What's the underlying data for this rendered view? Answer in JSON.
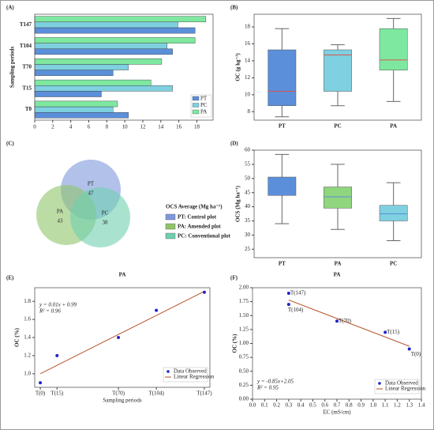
{
  "chart_data": [
    {
      "panel": "(A)",
      "type": "bar",
      "orientation": "horizontal",
      "ylabel": "Sampling periods",
      "categories": [
        "T0",
        "T15",
        "T70",
        "T104",
        "T147"
      ],
      "series": [
        {
          "name": "PT",
          "color": "#5b8fd9",
          "values": [
            10.4,
            7.4,
            8.7,
            15.3,
            17.8
          ]
        },
        {
          "name": "PC",
          "color": "#7fd0e0",
          "values": [
            8.7,
            15.3,
            10.4,
            14.7,
            15.9
          ]
        },
        {
          "name": "PA",
          "color": "#7ee8a0",
          "values": [
            9.2,
            12.9,
            14.1,
            17.8,
            19.0
          ]
        }
      ],
      "xlim": [
        0,
        19.8
      ],
      "xticks": [
        0,
        2,
        4,
        6,
        8,
        10,
        12,
        14,
        16,
        18
      ],
      "legend": "lower right"
    },
    {
      "panel": "(B)",
      "type": "box",
      "ylabel": "OC (g kg⁻¹)",
      "categories": [
        "PT",
        "PC",
        "PA"
      ],
      "colors": [
        "#5b8fd9",
        "#7fd0e0",
        "#7ee8a0"
      ],
      "median_color": "#d9534f",
      "boxes": [
        {
          "min": 7.4,
          "q1": 8.7,
          "median": 10.4,
          "q3": 15.3,
          "max": 17.8
        },
        {
          "min": 8.7,
          "q1": 10.4,
          "median": 14.7,
          "q3": 15.3,
          "max": 15.9
        },
        {
          "min": 9.2,
          "q1": 12.9,
          "median": 14.1,
          "q3": 17.8,
          "max": 19.0
        }
      ],
      "ylim": [
        7,
        19.5
      ],
      "yticks": [
        8,
        10,
        12,
        14,
        16,
        18
      ]
    },
    {
      "panel": "(C)",
      "type": "venn",
      "sets": [
        {
          "name": "PT",
          "value": 47,
          "color": "#7f98dc"
        },
        {
          "name": "PA",
          "value": 43,
          "color": "#8fc46a"
        },
        {
          "name": "PC",
          "value": 38,
          "color": "#6fd0b0"
        }
      ],
      "legend_title": "OCS Average (Mg ha⁻¹)",
      "legend": [
        "PT: Control plot",
        "PA: Amended plot",
        "PC: Conventional plot"
      ]
    },
    {
      "panel": "(D)",
      "type": "box",
      "ylabel": "OCS (Mg ha⁻¹)",
      "categories": [
        "PT",
        "PA",
        "PC"
      ],
      "colors": [
        "#5b8fd9",
        "#8fd67e",
        "#7fd0e0"
      ],
      "median_color": "#5b8fd9",
      "boxes": [
        {
          "min": 34,
          "q1": 44,
          "median": 47.5,
          "q3": 50.5,
          "max": 58.5
        },
        {
          "min": 32,
          "q1": 39.5,
          "median": 43.5,
          "q3": 47,
          "max": 55
        },
        {
          "min": 28,
          "q1": 35,
          "median": 37.5,
          "q3": 40.5,
          "max": 48.5
        }
      ],
      "ylim": [
        22,
        60
      ],
      "yticks": [
        25,
        30,
        35,
        40,
        45,
        50,
        55,
        60
      ]
    },
    {
      "panel": "(E)",
      "type": "scatter",
      "title": "PA",
      "xlabel": "Sampling periods",
      "ylabel": "OC (%)",
      "x": [
        0,
        15,
        70,
        104,
        147
      ],
      "series": [
        {
          "name": "Data Observed",
          "color": "#2222cc",
          "values": [
            0.9,
            1.2,
            1.4,
            1.7,
            1.9
          ]
        }
      ],
      "fit": {
        "name": "Linear Regression",
        "color": "#b5562a",
        "x": [
          0,
          147
        ],
        "values": [
          1.0,
          1.91
        ]
      },
      "annotations": [
        "y = 0.01x + 0.99",
        "R² = 0.96"
      ],
      "annotation_corner": "upper left",
      "xlim": [
        -5,
        152
      ],
      "ylim": [
        0.85,
        1.95
      ],
      "xticks": [
        {
          "value": 0,
          "label": "T(0)"
        },
        {
          "value": 15,
          "label": "T(15)"
        },
        {
          "value": 70,
          "label": "T(70)"
        },
        {
          "value": 104,
          "label": "T(104)"
        },
        {
          "value": 147,
          "label": "T(147)"
        }
      ],
      "yticks": [
        {
          "value": 1,
          "label": "1.0"
        },
        1.2,
        1.4,
        1.6,
        1.8
      ],
      "legend": "lower right"
    },
    {
      "panel": "(F)",
      "type": "scatter",
      "title": "PA",
      "xlabel": "EC (mS/cm)",
      "ylabel": "OC (%)",
      "x": [
        0.3,
        0.3,
        0.7,
        1.1,
        1.3
      ],
      "series": [
        {
          "name": "Data Observed",
          "color": "#2222cc",
          "values": [
            1.9,
            1.7,
            1.4,
            1.2,
            0.9
          ]
        }
      ],
      "point_labels": [
        "T(147)",
        "T(104)",
        "T(70)",
        "T(15)",
        "T(0)"
      ],
      "fit": {
        "name": "Linear Regression",
        "color": "#b5562a",
        "x": [
          0.3,
          1.3
        ],
        "values": [
          1.78,
          0.95
        ]
      },
      "annotations": [
        "y = -0.85x+2.05",
        "R² = 0.95"
      ],
      "annotation_corner": "lower left",
      "xlim": [
        0,
        1.4
      ],
      "ylim": [
        0,
        2
      ],
      "xticks": [
        {
          "value": 0,
          "label": "0.0"
        },
        0.1,
        0.2,
        0.3,
        0.4,
        0.5,
        0.6,
        0.7,
        0.8,
        0.9,
        {
          "value": 1,
          "label": "1.0"
        },
        1.1,
        1.2,
        1.3,
        1.4
      ],
      "yticks": [
        {
          "value": 0,
          "label": "0.00"
        },
        0.25,
        {
          "value": 0.5,
          "label": "0.50"
        },
        0.75,
        {
          "value": 1,
          "label": "1.00"
        },
        1.25,
        {
          "value": 1.5,
          "label": "1.50"
        },
        1.75,
        {
          "value": 2,
          "label": "2.00"
        }
      ],
      "legend": "lower right"
    }
  ]
}
